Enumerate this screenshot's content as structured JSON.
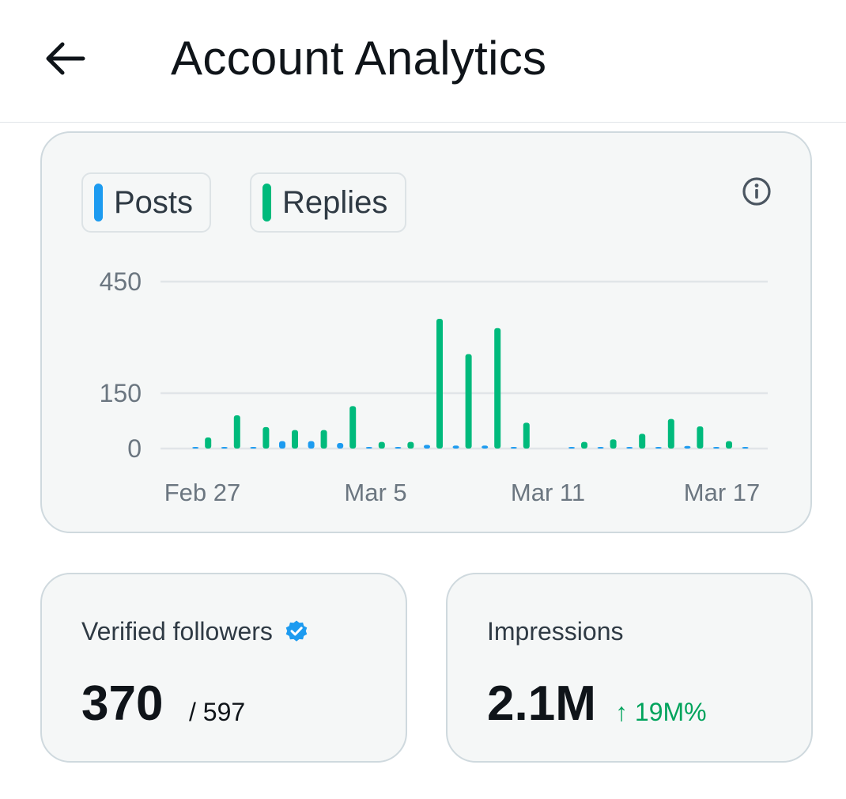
{
  "header": {
    "title": "Account Analytics",
    "back_icon": "arrow-left-icon"
  },
  "legend": {
    "posts_label": "Posts",
    "replies_label": "Replies"
  },
  "colors": {
    "posts": "#1d9bf0",
    "replies": "#00ba7c",
    "gridline": "#e1e5e8",
    "axis_text": "#6b7680"
  },
  "chart_data": {
    "type": "bar",
    "x_tick_labels": [
      "Feb 27",
      "Mar 5",
      "Mar 11",
      "Mar 17"
    ],
    "y_ticks": [
      0,
      150,
      450
    ],
    "ylim": [
      0,
      450
    ],
    "categories": [
      "Feb 27",
      "Feb 28",
      "Feb 29",
      "Mar 1",
      "Mar 2",
      "Mar 3",
      "Mar 4",
      "Mar 5",
      "Mar 6",
      "Mar 7",
      "Mar 8",
      "Mar 9",
      "Mar 10",
      "Mar 11",
      "Mar 12",
      "Mar 13",
      "Mar 14",
      "Mar 15",
      "Mar 16",
      "Mar 17",
      "Mar 18",
      "Mar 19",
      "Mar 20"
    ],
    "series": [
      {
        "name": "Posts",
        "values": [
          0,
          0,
          2,
          2,
          3,
          20,
          20,
          15,
          3,
          3,
          10,
          8,
          8,
          3,
          0,
          3,
          2,
          3,
          2,
          7,
          2,
          3,
          0
        ]
      },
      {
        "name": "Replies",
        "values": [
          0,
          0,
          30,
          90,
          58,
          50,
          50,
          115,
          18,
          18,
          350,
          255,
          325,
          70,
          0,
          18,
          25,
          40,
          80,
          60,
          20,
          0,
          0
        ]
      }
    ],
    "grid": true
  },
  "stats": {
    "verified": {
      "label": "Verified followers",
      "value": "370",
      "total": "/ 597",
      "icon": "verified-badge-icon"
    },
    "impressions": {
      "label": "Impressions",
      "value": "2.1M",
      "change": "↑ 19M%"
    }
  }
}
